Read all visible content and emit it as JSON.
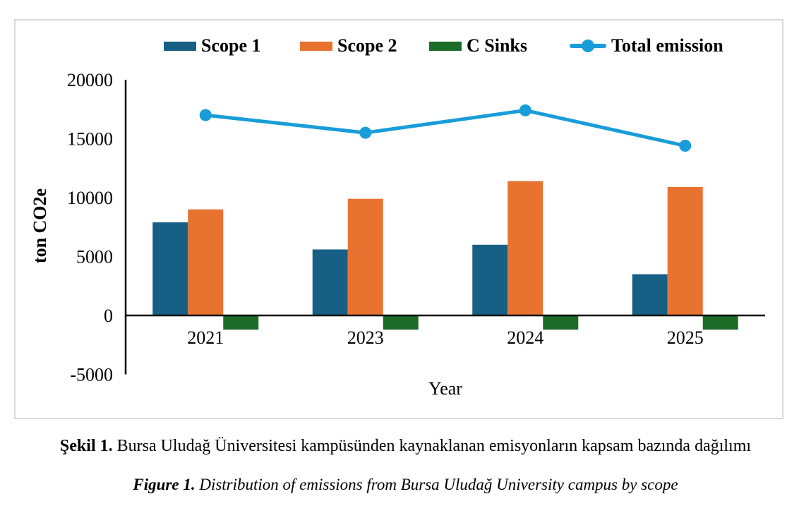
{
  "captions": {
    "turkish_label": "Şekil 1.",
    "turkish_text": " Bursa Uludağ Üniversitesi kampüsünden kaynaklanan emisyonların kapsam bazında dağılımı",
    "english_label": "Figure 1.",
    "english_text": " Distribution of emissions from Bursa Uludağ University campus by scope"
  },
  "chart_data": {
    "type": "bar",
    "subtype": "grouped-bars-with-line-overlay",
    "categories": [
      "2021",
      "2023",
      "2024",
      "2025"
    ],
    "series": [
      {
        "name": "Scope 1",
        "kind": "bar",
        "color": "#175F85",
        "values": [
          7900,
          5600,
          6000,
          3500
        ]
      },
      {
        "name": "Scope 2",
        "kind": "bar",
        "color": "#E87331",
        "values": [
          9000,
          9900,
          11400,
          10900
        ]
      },
      {
        "name": "C Sinks",
        "kind": "bar",
        "color": "#1C6C28",
        "values": [
          -1200,
          -1200,
          -1200,
          -1200
        ]
      },
      {
        "name": "Total emission",
        "kind": "line",
        "color": "#189DD9",
        "values": [
          17000,
          15500,
          17400,
          14400
        ]
      }
    ],
    "xlabel": "Year",
    "ylabel": "ton CO2e",
    "ylim": [
      -5000,
      20000
    ],
    "yticks": [
      20000,
      15000,
      10000,
      5000,
      0,
      -5000
    ],
    "legend_position": "top",
    "grid": false,
    "axis_color": "#000000",
    "frame_border_color": "#D9D9D9"
  }
}
